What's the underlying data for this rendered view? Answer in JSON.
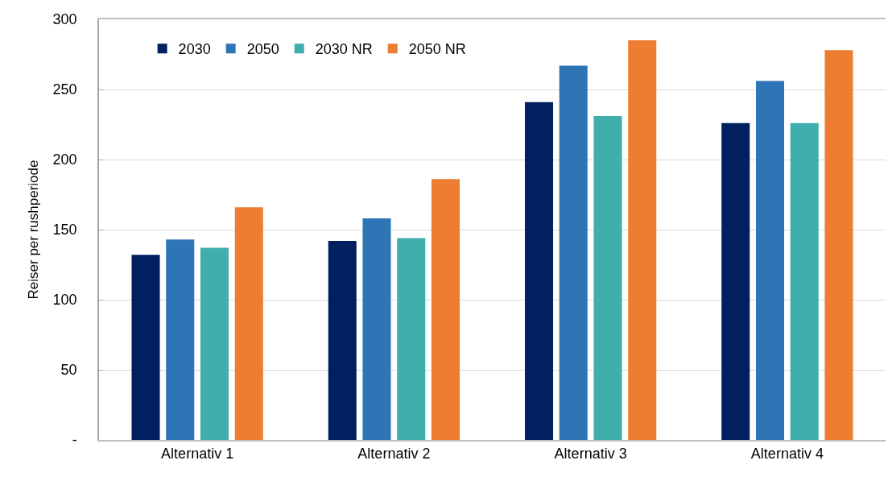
{
  "chart_data": {
    "type": "bar",
    "ylabel": "Reiser per rushperiode",
    "categories": [
      "Alternativ 1",
      "Alternativ 2",
      "Alternativ 3",
      "Alternativ 4"
    ],
    "series": [
      {
        "name": "2030",
        "color": "#002060",
        "values": [
          132,
          142,
          241,
          226
        ]
      },
      {
        "name": "2050",
        "color": "#2e75b6",
        "values": [
          143,
          158,
          267,
          256
        ]
      },
      {
        "name": "2030 NR",
        "color": "#41aeae",
        "values": [
          137,
          144,
          231,
          226
        ]
      },
      {
        "name": "2050 NR",
        "color": "#ed7d31",
        "values": [
          166,
          186,
          285,
          278
        ]
      }
    ],
    "ylim": [
      0,
      300
    ],
    "yticks": [
      {
        "value": 0,
        "label": "-"
      },
      50,
      100,
      150,
      200,
      250,
      300
    ],
    "grid": "y",
    "legend": "top left"
  }
}
